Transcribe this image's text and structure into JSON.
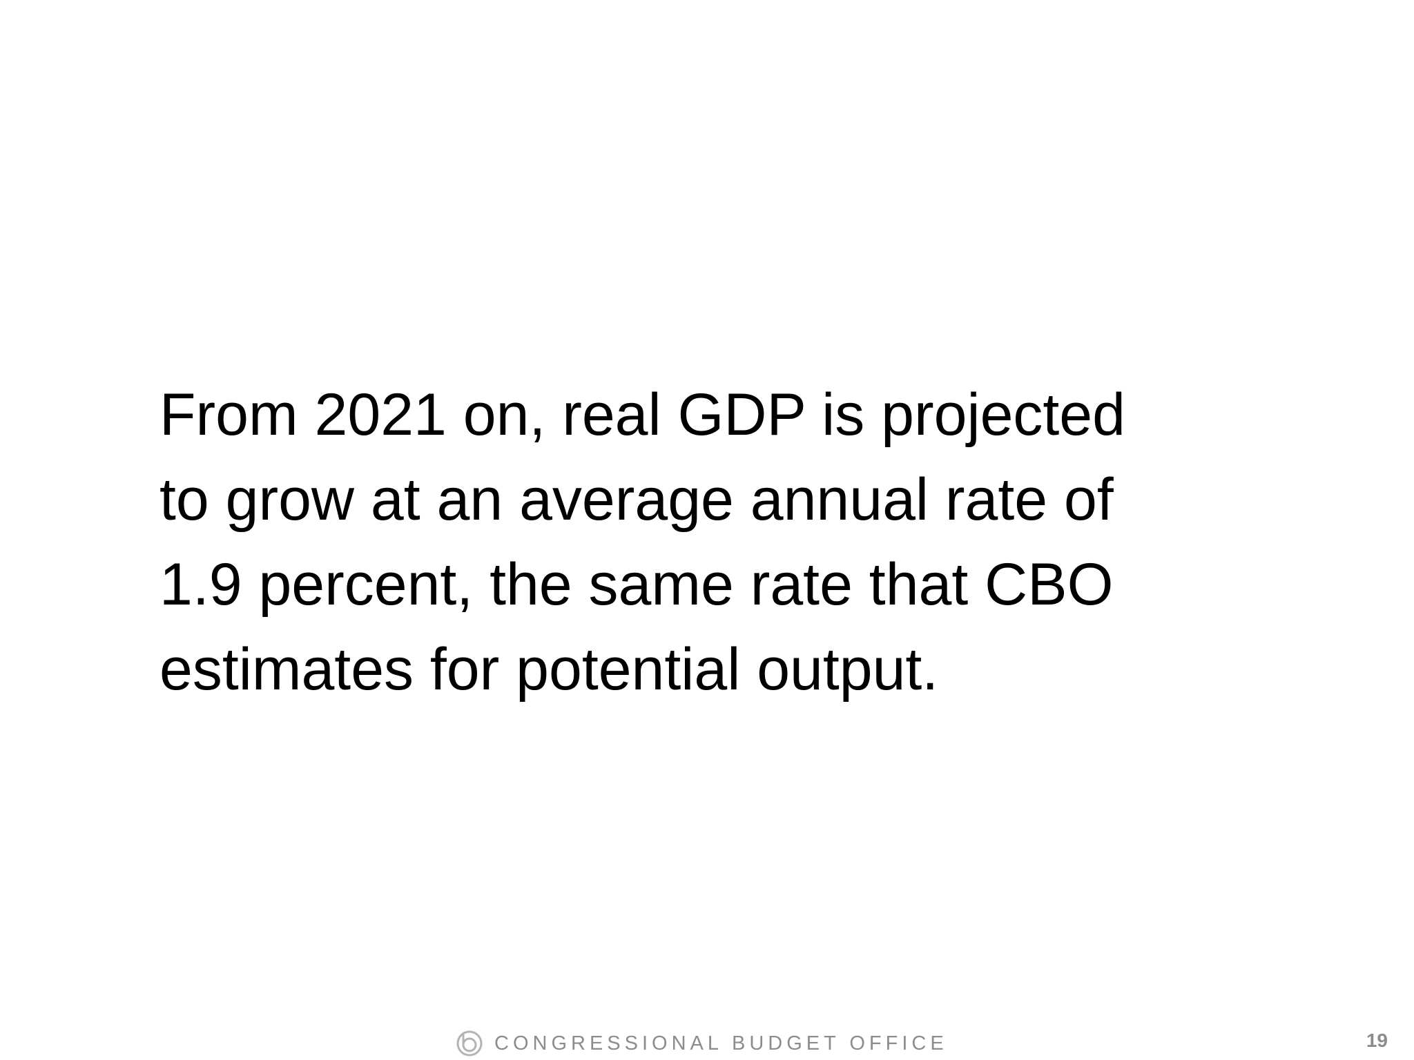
{
  "body": {
    "lines": [
      "From 2021 on, real GDP is projected",
      "to grow at an average annual rate of",
      "1.9 percent, the same rate that CBO",
      "estimates for potential output."
    ]
  },
  "footer": {
    "organization": "CONGRESSIONAL BUDGET OFFICE",
    "page_number": "19"
  }
}
